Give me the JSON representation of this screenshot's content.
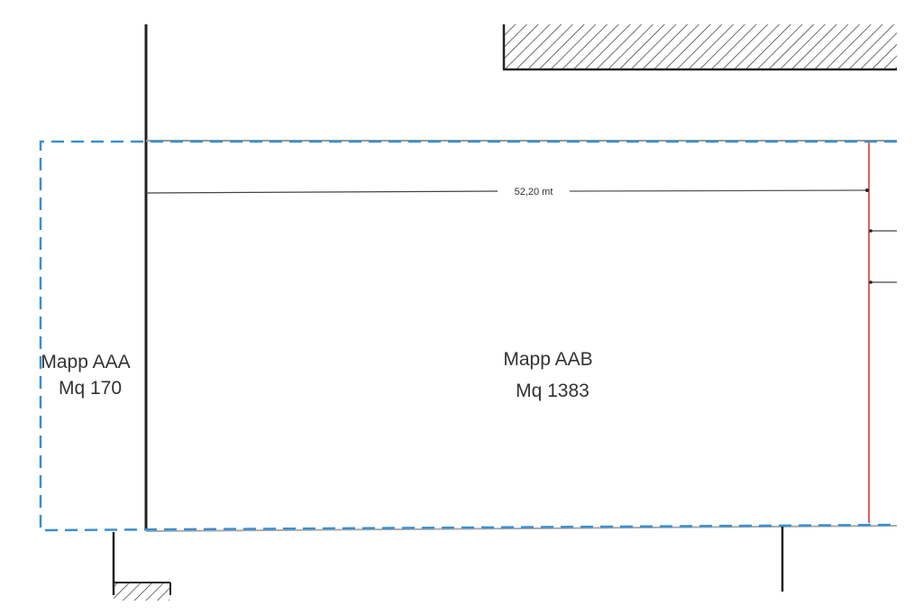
{
  "plan": {
    "dimension_label": "52,20 mt",
    "units": [
      {
        "name": "Mapp AAA",
        "area": "Mq 170"
      },
      {
        "name": "Mapp AAB",
        "area": "Mq 1383"
      }
    ]
  },
  "colors": {
    "boundary_dashed": "#3a8fd0",
    "wall": "#222222",
    "red_line": "#e06060",
    "hatch": "#333333"
  }
}
